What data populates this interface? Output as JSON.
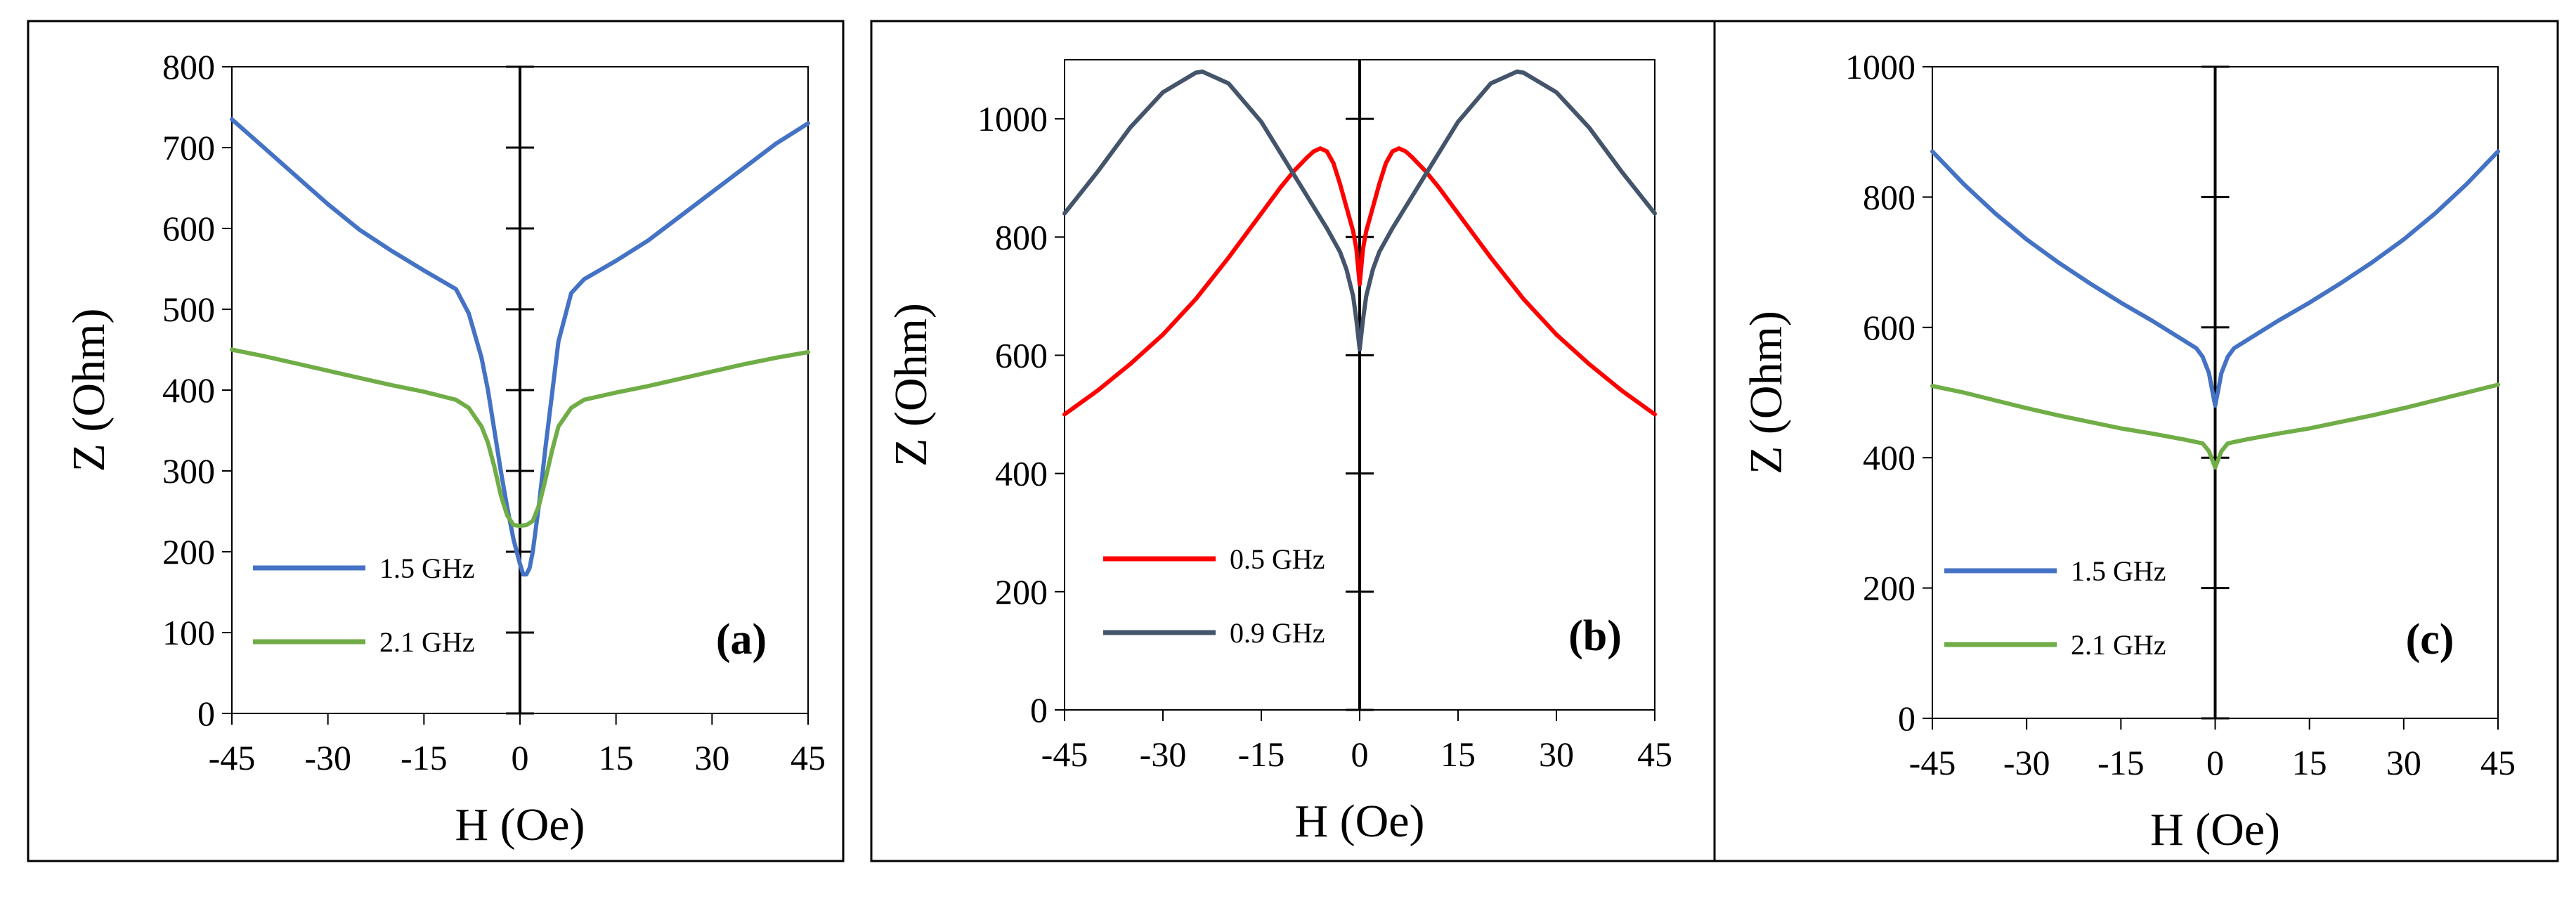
{
  "figure": {
    "description_panels": [
      "a",
      "b",
      "c"
    ]
  },
  "colors": {
    "blue": "#4472C4",
    "green": "#70AD47",
    "red": "#FF0000",
    "slate": "#44546A",
    "axis": "#000000"
  },
  "chart_data": [
    {
      "type": "line",
      "panel_label": "(a)",
      "xlabel": "H (Oe)",
      "ylabel": "Z (Ohm)",
      "xlim": [
        -45,
        45
      ],
      "ylim": [
        0,
        800
      ],
      "xticks": [
        -45,
        -30,
        -15,
        0,
        15,
        30,
        45
      ],
      "xtick_labels": [
        "-45",
        "-30",
        "-15",
        "0",
        "15",
        "30",
        "45"
      ],
      "yticks": [
        0,
        100,
        200,
        300,
        400,
        500,
        600,
        700,
        800
      ],
      "ytick_labels": [
        "0",
        "100",
        "200",
        "300",
        "400",
        "500",
        "600",
        "700",
        "800"
      ],
      "legend": "bottom-left",
      "series": [
        {
          "name": "1.5 GHz",
          "color": "#4472C4",
          "x": [
            -45,
            -40,
            -35,
            -30,
            -25,
            -20,
            -15,
            -10,
            -8,
            -6,
            -5,
            -4,
            -3,
            -2,
            -1,
            0,
            0.5,
            1,
            1.5,
            2,
            3,
            4,
            5,
            6,
            8,
            10,
            15,
            20,
            25,
            30,
            35,
            40,
            45
          ],
          "y": [
            735,
            700,
            665,
            630,
            598,
            572,
            548,
            525,
            495,
            440,
            400,
            350,
            300,
            255,
            215,
            185,
            172,
            172,
            180,
            200,
            260,
            330,
            395,
            460,
            520,
            537,
            560,
            585,
            615,
            645,
            675,
            705,
            730
          ]
        },
        {
          "name": "2.1 GHz",
          "color": "#70AD47",
          "x": [
            -45,
            -40,
            -35,
            -30,
            -25,
            -20,
            -15,
            -10,
            -8,
            -6,
            -5,
            -4,
            -3,
            -2,
            -1,
            0,
            1,
            2,
            3,
            4,
            5,
            6,
            8,
            10,
            15,
            20,
            25,
            30,
            35,
            40,
            45
          ],
          "y": [
            450,
            442,
            433,
            424,
            415,
            406,
            398,
            388,
            378,
            355,
            335,
            305,
            270,
            245,
            233,
            232,
            233,
            238,
            258,
            290,
            325,
            355,
            378,
            388,
            397,
            405,
            414,
            423,
            432,
            440,
            447
          ]
        }
      ]
    },
    {
      "type": "line",
      "panel_label": "(b)",
      "xlabel": "H (Oe)",
      "ylabel": "Z (Ohm)",
      "xlim": [
        -45,
        45
      ],
      "ylim": [
        0,
        1100
      ],
      "xticks": [
        -45,
        -30,
        -15,
        0,
        15,
        30,
        45
      ],
      "xtick_labels": [
        "-45",
        "-30",
        "-15",
        "0",
        "15",
        "30",
        "45"
      ],
      "yticks": [
        0,
        200,
        400,
        600,
        800,
        1000
      ],
      "ytick_labels": [
        "0",
        "200",
        "400",
        "600",
        "800",
        "1000"
      ],
      "legend": "bottom-left",
      "series": [
        {
          "name": "0.5 GHz",
          "color": "#FF0000",
          "x": [
            -45,
            -40,
            -35,
            -30,
            -25,
            -20,
            -15,
            -12,
            -10,
            -8,
            -7,
            -6,
            -5,
            -4,
            -3,
            -2,
            -1,
            -0.5,
            0,
            0.5,
            1,
            2,
            3,
            4,
            5,
            6,
            7,
            8,
            10,
            12,
            15,
            20,
            25,
            30,
            35,
            40,
            45
          ],
          "y": [
            500,
            540,
            585,
            635,
            695,
            765,
            840,
            885,
            912,
            935,
            945,
            950,
            945,
            925,
            890,
            850,
            810,
            780,
            720,
            780,
            810,
            850,
            890,
            925,
            945,
            950,
            945,
            935,
            912,
            885,
            840,
            765,
            695,
            635,
            585,
            540,
            500
          ]
        },
        {
          "name": "0.9 GHz",
          "color": "#44546A",
          "x": [
            -45,
            -40,
            -35,
            -30,
            -25,
            -24,
            -20,
            -15,
            -10,
            -5,
            -3,
            -2,
            -1,
            -0.5,
            0,
            0.5,
            1,
            2,
            3,
            5,
            10,
            15,
            20,
            24,
            25,
            30,
            35,
            40,
            45
          ],
          "y": [
            840,
            910,
            985,
            1045,
            1078,
            1080,
            1060,
            995,
            905,
            815,
            775,
            745,
            700,
            660,
            610,
            660,
            700,
            745,
            775,
            815,
            905,
            995,
            1060,
            1080,
            1078,
            1045,
            985,
            910,
            840
          ]
        }
      ]
    },
    {
      "type": "line",
      "panel_label": "(c)",
      "xlabel": "H (Oe)",
      "ylabel": "Z (Ohm)",
      "xlim": [
        -45,
        45
      ],
      "ylim": [
        0,
        1000
      ],
      "xticks": [
        -45,
        -30,
        -15,
        0,
        15,
        30,
        45
      ],
      "xtick_labels": [
        "-45",
        "-30",
        "-15",
        "0",
        "15",
        "30",
        "45"
      ],
      "yticks": [
        0,
        200,
        400,
        600,
        800,
        1000
      ],
      "ytick_labels": [
        "0",
        "200",
        "400",
        "600",
        "800",
        "1000"
      ],
      "legend": "bottom-left",
      "series": [
        {
          "name": "1.5 GHz",
          "color": "#4472C4",
          "x": [
            -45,
            -40,
            -35,
            -30,
            -25,
            -20,
            -15,
            -10,
            -5,
            -3,
            -2,
            -1,
            -0.5,
            0,
            0.5,
            1,
            2,
            3,
            5,
            10,
            15,
            20,
            25,
            30,
            35,
            40,
            45
          ],
          "y": [
            870,
            820,
            775,
            735,
            700,
            668,
            638,
            610,
            580,
            568,
            555,
            530,
            505,
            480,
            505,
            530,
            555,
            568,
            580,
            610,
            638,
            668,
            700,
            735,
            775,
            820,
            870
          ]
        },
        {
          "name": "2.1 GHz",
          "color": "#70AD47",
          "x": [
            -45,
            -40,
            -35,
            -30,
            -25,
            -20,
            -15,
            -10,
            -5,
            -2,
            -1,
            0,
            1,
            2,
            5,
            10,
            15,
            20,
            25,
            30,
            35,
            40,
            45
          ],
          "y": [
            510,
            500,
            488,
            476,
            465,
            455,
            445,
            437,
            428,
            422,
            410,
            385,
            410,
            422,
            428,
            437,
            445,
            455,
            465,
            476,
            488,
            500,
            512
          ]
        }
      ]
    }
  ]
}
